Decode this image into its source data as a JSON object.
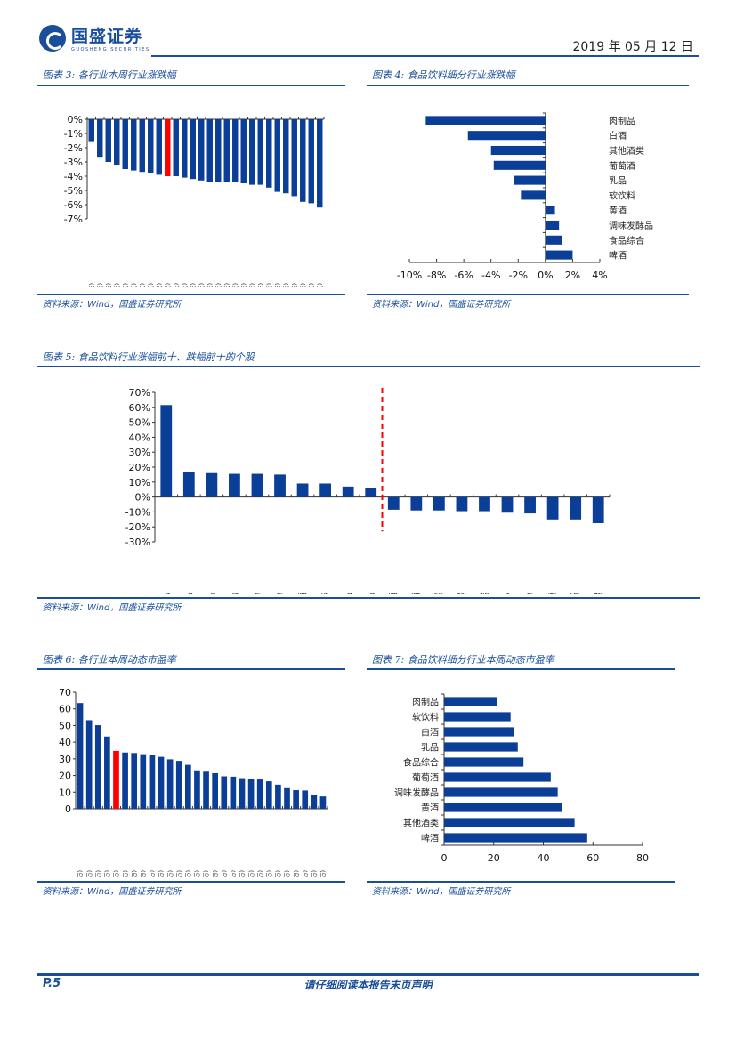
{
  "header": {
    "logo_cn": "国盛证券",
    "logo_en": "GUOSHENG SECURITIES",
    "date": "2019 年 05 月 12 日"
  },
  "colors": {
    "bar": "#0b3e96",
    "highlight": "#ff0000",
    "accent": "#1a4e9a"
  },
  "figures": {
    "fig3": {
      "caption": "图表 3:  各行业本周行业涨跌幅",
      "source": "资料来源：Wind，国盛证券研究所"
    },
    "fig4": {
      "caption": "图表 4:  食品饮料细分行业涨跌幅",
      "source": "资料来源：Wind，国盛证券研究所"
    },
    "fig5": {
      "caption": "图表 5:  食品饮料行业涨幅前十、跌幅前十的个股",
      "source": "资料来源：Wind，国盛证券研究所"
    },
    "fig6": {
      "caption": "图表 6:  各行业本周动态市盈率",
      "source": "资料来源：Wind，国盛证券研究所"
    },
    "fig7": {
      "caption": "图表 7:  食品饮料细分行业本周动态市盈率",
      "source": "资料来源：Wind，国盛证券研究所"
    }
  },
  "footer": {
    "page": "P.5",
    "disclaimer": "请仔细阅读本报告末页声明"
  },
  "chart_data": [
    {
      "id": "fig3",
      "type": "bar",
      "title": "各行业本周行业涨跌幅",
      "ylabel": "",
      "xlabel": "",
      "ylim": [
        -7,
        0
      ],
      "yticks": [
        "0%",
        "-1%",
        "-2%",
        "-3%",
        "-4%",
        "-5%",
        "-6%",
        "-7%"
      ],
      "unit": "%",
      "highlight": "食品饮料(申万)",
      "categories": [
        "国防军工(申万)",
        "家用电器(申万)",
        "纺织服装(申万)",
        "建筑材料(申万)",
        "机械设备(申万)",
        "计算机(申万)",
        "休闲服务(申万)",
        "商业贸易(申万)",
        "公用事业(申万)",
        "食品饮料(申万)",
        "综合(申万)",
        "轻工制造(申万)",
        "传媒(申万)",
        "有色金属(申万)",
        "房地产(申万)",
        "银行(申万)",
        "电子(申万)",
        "医药生物(申万)",
        "电气设备(申万)",
        "汽车(申万)",
        "农林牧渔(申万)",
        "采掘(申万)",
        "化工(申万)",
        "建筑装饰(申万)",
        "交通运输(申万)",
        "钢铁(申万)",
        "通信(申万)",
        "非银金融(申万)"
      ],
      "values": [
        -1.6,
        -2.7,
        -3.0,
        -3.2,
        -3.5,
        -3.6,
        -3.7,
        -3.8,
        -3.9,
        -4.0,
        -4.0,
        -4.1,
        -4.2,
        -4.3,
        -4.4,
        -4.4,
        -4.4,
        -4.4,
        -4.5,
        -4.6,
        -4.6,
        -4.8,
        -5.1,
        -5.2,
        -5.4,
        -5.8,
        -5.9,
        -6.2
      ]
    },
    {
      "id": "fig4",
      "type": "bar",
      "orientation": "horizontal",
      "title": "食品饮料细分行业涨跌幅",
      "xlim": [
        -10,
        4
      ],
      "xticks": [
        "-10%",
        "-8%",
        "-6%",
        "-4%",
        "-2%",
        "0%",
        "2%",
        "4%"
      ],
      "unit": "%",
      "categories": [
        "肉制品",
        "白酒",
        "其他酒类",
        "葡萄酒",
        "乳品",
        "软饮料",
        "黄酒",
        "调味发酵品",
        "食品综合",
        "啤酒"
      ],
      "values": [
        -8.8,
        -5.7,
        -4.0,
        -3.8,
        -2.3,
        -1.8,
        0.7,
        1.0,
        1.2,
        2.0
      ]
    },
    {
      "id": "fig5",
      "type": "bar",
      "title": "食品饮料行业涨幅前十、跌幅前十的个股",
      "ylim": [
        -30,
        70
      ],
      "yticks": [
        "70%",
        "60%",
        "50%",
        "40%",
        "30%",
        "20%",
        "10%",
        "0%",
        "-10%",
        "-20%",
        "-30%"
      ],
      "unit": "%",
      "divider_after_index": 9,
      "categories": [
        "双塔食品",
        "海欣食品",
        "安记食品",
        "庄园牧场",
        "绯维股份",
        "来伊份",
        "重庆啤酒",
        "黑芝麻",
        "加加食品",
        "三全食品",
        "酒鬼酒",
        "老白干酒",
        "口子窖",
        "双汇发展",
        "西藏发展",
        "上海梅林",
        "通葡股份",
        "莲花健康",
        "得利斯",
        "金字火腿"
      ],
      "values": [
        61.5,
        17.0,
        16.0,
        15.5,
        15.5,
        15.0,
        9.0,
        9.0,
        7.0,
        6.0,
        -8.5,
        -9.0,
        -9.0,
        -9.5,
        -9.5,
        -10.5,
        -11.0,
        -15.0,
        -15.0,
        -17.5
      ]
    },
    {
      "id": "fig6",
      "type": "bar",
      "title": "各行业本周动态市盈率",
      "ylim": [
        0,
        70
      ],
      "yticks": [
        "70",
        "60",
        "50",
        "40",
        "30",
        "20",
        "10",
        "0"
      ],
      "highlight": "食品饮料(申万)",
      "categories": [
        "国防军工(申万)",
        "计算机(申万)",
        "电子(申万)",
        "通信(申万)",
        "食品饮料(申万)",
        "传媒(申万)",
        "有色金属(申万)",
        "电气设备(申万)",
        "综合(申万)",
        "休闲服务(申万)",
        "机械设备(申万)",
        "农林牧渔(申万)",
        "医药生物(申万)",
        "纺织服装(申万)",
        "商业贸易(申万)",
        "公用事业(申万)",
        "采掘(申万)",
        "轻工制造(申万)",
        "汽车(申万)",
        "非银金融(申万)",
        "化工(申万)",
        "家用电器(申万)",
        "交通运输(申万)",
        "建筑材料(申万)",
        "建筑装饰(申万)",
        "房地产(申万)",
        "钢铁(申万)",
        "银行(申万)"
      ],
      "values": [
        63.5,
        53.2,
        50.2,
        43.4,
        34.8,
        33.8,
        33.5,
        32.8,
        32.1,
        31.2,
        29.7,
        28.8,
        26.4,
        23.1,
        22.3,
        21.4,
        19.5,
        19.3,
        18.4,
        18.0,
        17.6,
        16.5,
        14.5,
        12.4,
        11.2,
        11.0,
        8.3,
        7.4
      ]
    },
    {
      "id": "fig7",
      "type": "bar",
      "orientation": "horizontal",
      "title": "食品饮料细分行业本周动态市盈率",
      "xlim": [
        0,
        80
      ],
      "xticks": [
        "0",
        "20",
        "40",
        "60",
        "80"
      ],
      "categories": [
        "肉制品",
        "软饮料",
        "白酒",
        "乳品",
        "食品综合",
        "葡萄酒",
        "调味发酵品",
        "黄酒",
        "其他酒类",
        "啤酒"
      ],
      "values": [
        21.2,
        26.8,
        28.3,
        29.7,
        32.0,
        43.0,
        45.8,
        47.4,
        52.6,
        57.7
      ]
    }
  ]
}
